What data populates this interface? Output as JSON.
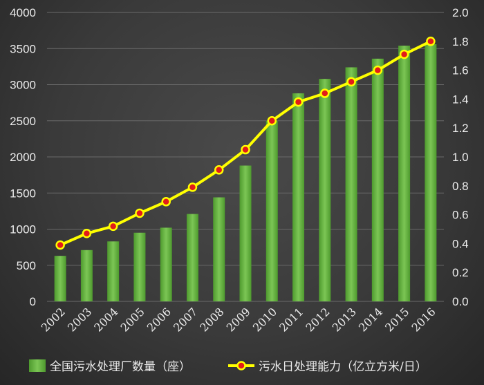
{
  "chart_data": {
    "type": "bar",
    "categories": [
      "2002",
      "2003",
      "2004",
      "2005",
      "2006",
      "2007",
      "2008",
      "2009",
      "2010",
      "2011",
      "2012",
      "2013",
      "2014",
      "2015",
      "2016"
    ],
    "series": [
      {
        "name": "全国污水处理厂数量（座）",
        "type": "bar",
        "axis": "left",
        "values": [
          630,
          710,
          830,
          950,
          1020,
          1210,
          1440,
          1880,
          2500,
          2880,
          3080,
          3240,
          3360,
          3540,
          3560
        ]
      },
      {
        "name": "污水日处理能力（亿立方米/日）",
        "type": "line",
        "axis": "right",
        "values": [
          0.39,
          0.47,
          0.52,
          0.61,
          0.69,
          0.79,
          0.91,
          1.05,
          1.25,
          1.38,
          1.44,
          1.52,
          1.6,
          1.71,
          1.8
        ]
      }
    ],
    "y_left": {
      "ylim": [
        0,
        4000
      ],
      "ticks": [
        "0",
        "500",
        "1000",
        "1500",
        "2000",
        "2500",
        "3000",
        "3500",
        "4000"
      ]
    },
    "y_right": {
      "ylim": [
        0,
        2.0
      ],
      "ticks": [
        "0.0",
        "0.2",
        "0.4",
        "0.6",
        "0.8",
        "1.0",
        "1.2",
        "1.4",
        "1.6",
        "1.8",
        "2.0"
      ]
    },
    "grid": true,
    "legend_position": "bottom",
    "colors": {
      "bar": "#5fa83a",
      "bar_light": "#82c85a",
      "line": "#ffff00",
      "marker_fill": "#e21a1a",
      "grid": "#6a6a6a",
      "text": "#ececec"
    }
  }
}
